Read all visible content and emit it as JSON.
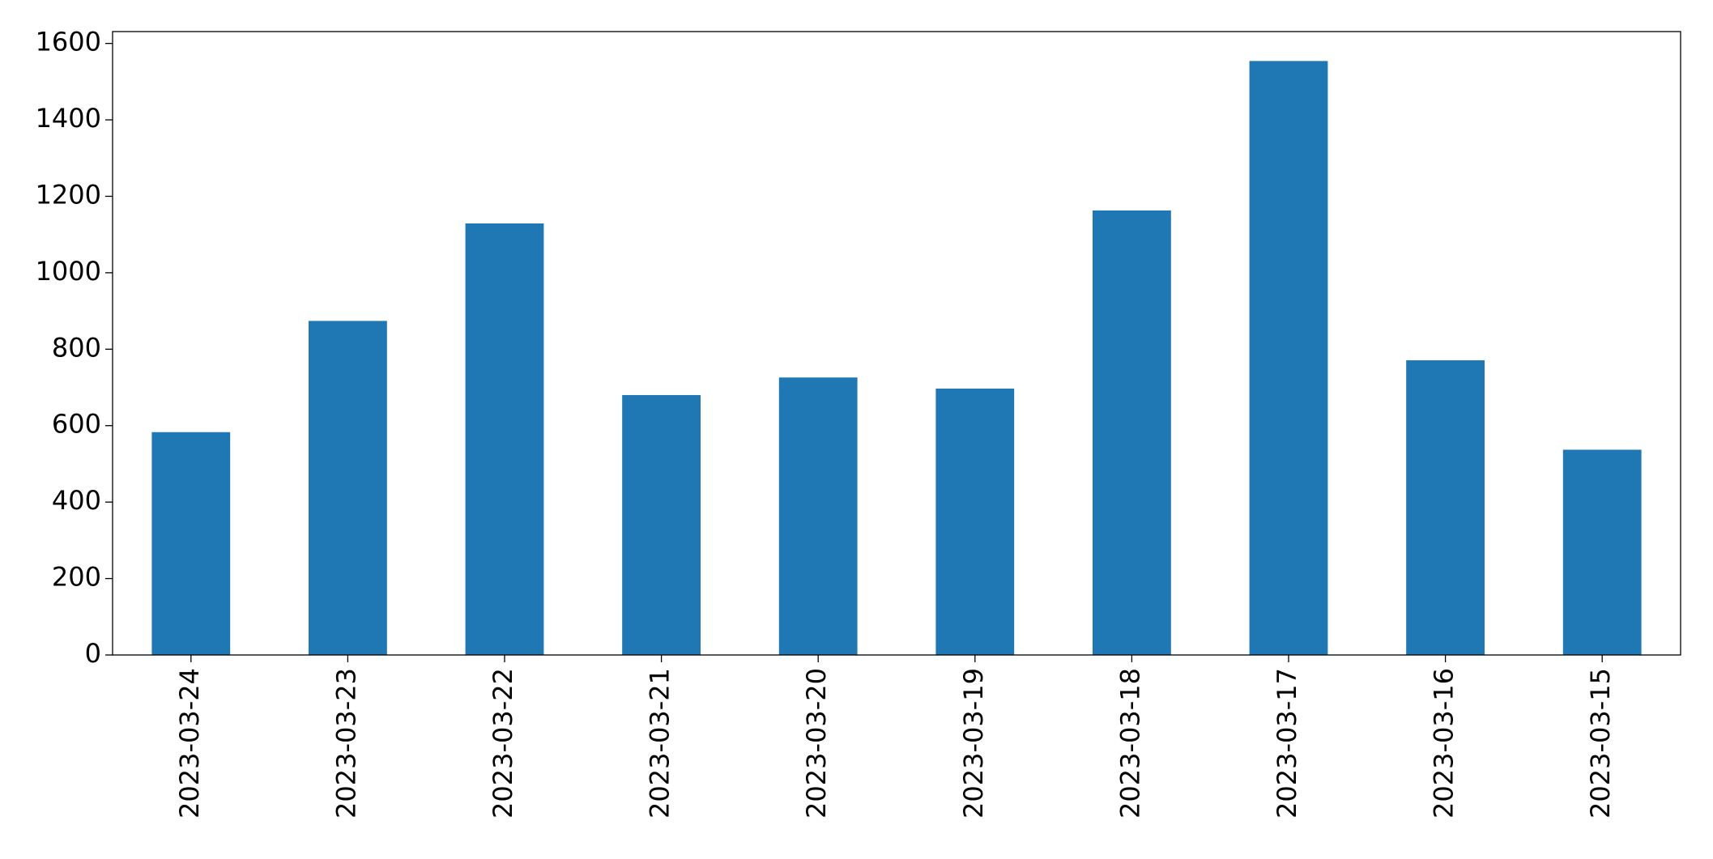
{
  "chart_data": {
    "type": "bar",
    "categories": [
      "2023-03-24",
      "2023-03-23",
      "2023-03-22",
      "2023-03-21",
      "2023-03-20",
      "2023-03-19",
      "2023-03-18",
      "2023-03-17",
      "2023-03-16",
      "2023-03-15"
    ],
    "values": [
      583,
      874,
      1129,
      680,
      726,
      697,
      1163,
      1554,
      771,
      537
    ],
    "color": "#1f77b4",
    "ylim": [
      0,
      1631
    ],
    "yticks": [
      0,
      200,
      400,
      600,
      800,
      1000,
      1200,
      1400,
      1600
    ],
    "grid": false
  }
}
